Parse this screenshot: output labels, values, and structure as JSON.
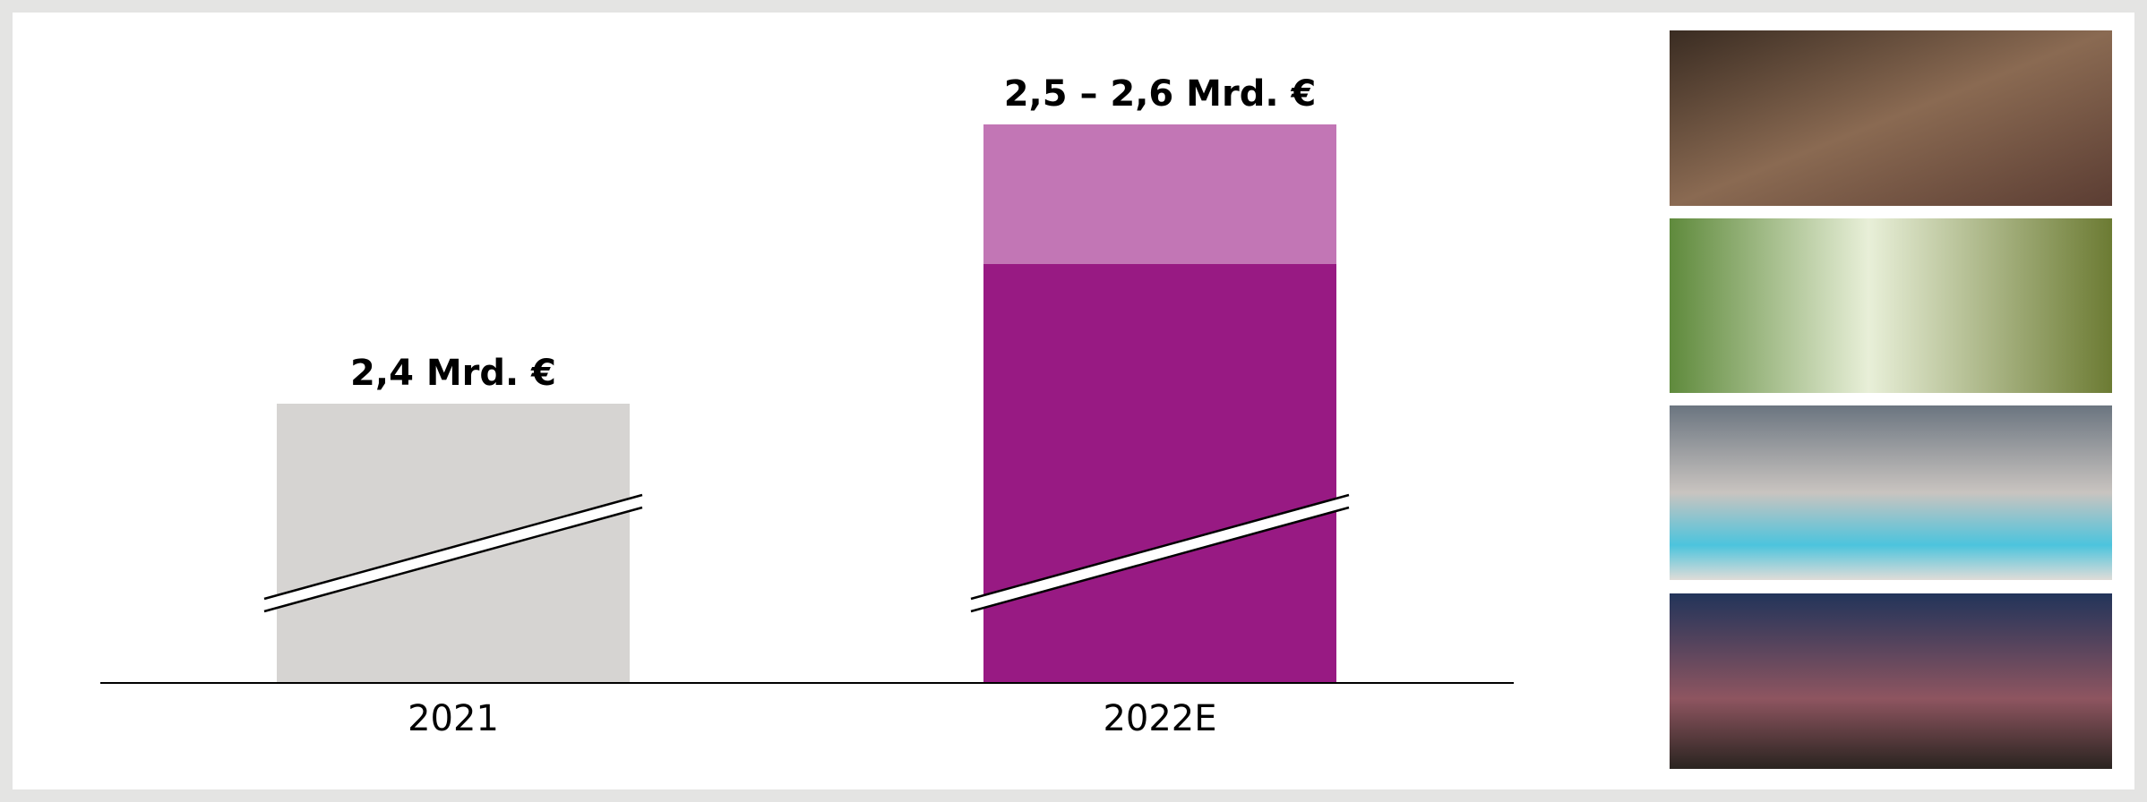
{
  "chart_data": {
    "type": "bar",
    "categories": [
      "2021",
      "2022E"
    ],
    "values": [
      2.4,
      2.5
    ],
    "upper": [
      null,
      2.6
    ],
    "value_labels": [
      "2,4 Mrd. €",
      "2,5 – 2,6 Mrd. €"
    ],
    "colors": [
      "#d6d4d2",
      "#981a83"
    ],
    "upper_color": "#c276b5",
    "ylim": [
      2.2,
      2.6
    ],
    "axis_break": true
  }
}
